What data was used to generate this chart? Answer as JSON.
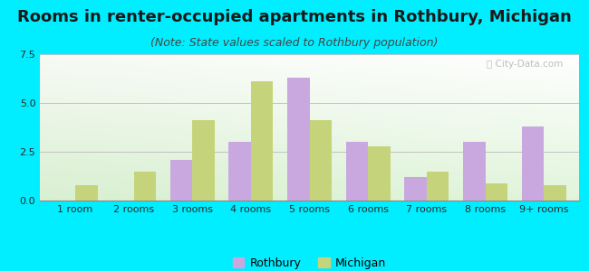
{
  "title": "Rooms in renter-occupied apartments in Rothbury, Michigan",
  "subtitle": "(Note: State values scaled to Rothbury population)",
  "categories": [
    "1 room",
    "2 rooms",
    "3 rooms",
    "4 rooms",
    "5 rooms",
    "6 rooms",
    "7 rooms",
    "8 rooms",
    "9+ rooms"
  ],
  "rothbury": [
    0,
    0,
    2.1,
    3.0,
    6.3,
    3.0,
    1.2,
    3.0,
    3.8
  ],
  "michigan": [
    0.8,
    1.5,
    4.1,
    6.1,
    4.1,
    2.8,
    1.5,
    0.9,
    0.8
  ],
  "rothbury_color": "#c9a8e0",
  "michigan_color": "#c5d47a",
  "ylim": [
    0,
    7.5
  ],
  "yticks": [
    0,
    2.5,
    5,
    7.5
  ],
  "bar_width": 0.38,
  "background_outer": "#00eeff",
  "grid_color": "#bbbbbb",
  "title_fontsize": 13,
  "subtitle_fontsize": 9,
  "legend_fontsize": 9,
  "tick_fontsize": 8,
  "axis_text_color": "#2a2a2a"
}
